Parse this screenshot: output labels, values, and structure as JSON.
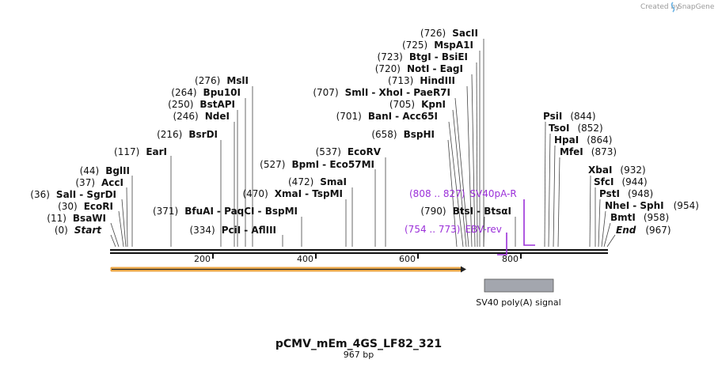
{
  "credit": {
    "text": "Created by",
    "brand": "SnapGene"
  },
  "plasmid": {
    "name": "pCMV_mEm_4GS_LF82_321",
    "length_label": "967 bp",
    "length": 967
  },
  "ticks": [
    "200",
    "400",
    "600",
    "800"
  ],
  "sites": [
    {
      "pos": "(0)",
      "names": [
        "Start"
      ],
      "italic": true,
      "bp": 0
    },
    {
      "pos": "(11)",
      "names": [
        "BsaWI"
      ],
      "bp": 11
    },
    {
      "pos": "(30)",
      "names": [
        "EcoRI"
      ],
      "bp": 30
    },
    {
      "pos": "(36)",
      "names": [
        "SalI",
        "SgrDI"
      ],
      "bp": 36
    },
    {
      "pos": "(37)",
      "names": [
        "AccI"
      ],
      "bp": 37
    },
    {
      "pos": "(44)",
      "names": [
        "BglII"
      ],
      "bp": 44
    },
    {
      "pos": "(117)",
      "names": [
        "EarI"
      ],
      "bp": 117
    },
    {
      "pos": "(216)",
      "names": [
        "BsrDI"
      ],
      "bp": 216
    },
    {
      "pos": "(246)",
      "names": [
        "NdeI"
      ],
      "bp": 246
    },
    {
      "pos": "(250)",
      "names": [
        "BstAPI"
      ],
      "bp": 250
    },
    {
      "pos": "(264)",
      "names": [
        "Bpu10I"
      ],
      "bp": 264
    },
    {
      "pos": "(276)",
      "names": [
        "MslI"
      ],
      "bp": 276
    },
    {
      "pos": "(334)",
      "names": [
        "PciI",
        "AflIII"
      ],
      "bp": 334
    },
    {
      "pos": "(371)",
      "names": [
        "BfuAI",
        "PaqCI",
        "BspMI"
      ],
      "bp": 371
    },
    {
      "pos": "(470)",
      "names": [
        "XmaI",
        "TspMI"
      ],
      "bp": 470
    },
    {
      "pos": "(472)",
      "names": [
        "SmaI"
      ],
      "bp": 472
    },
    {
      "pos": "(527)",
      "names": [
        "BpmI",
        "Eco57MI"
      ],
      "bp": 527
    },
    {
      "pos": "(537)",
      "names": [
        "EcoRV"
      ],
      "bp": 537
    },
    {
      "pos": "(658)",
      "names": [
        "BspHI"
      ],
      "bp": 658
    },
    {
      "pos": "(701)",
      "names": [
        "BanI",
        "Acc65I"
      ],
      "bp": 701
    },
    {
      "pos": "(705)",
      "names": [
        "KpnI"
      ],
      "bp": 705
    },
    {
      "pos": "(707)",
      "names": [
        "SmlI",
        "XhoI",
        "PaeR7I"
      ],
      "bp": 707
    },
    {
      "pos": "(713)",
      "names": [
        "HindIII"
      ],
      "bp": 713
    },
    {
      "pos": "(720)",
      "names": [
        "NotI",
        "EagI"
      ],
      "bp": 720
    },
    {
      "pos": "(723)",
      "names": [
        "BtgI",
        "BsiEI"
      ],
      "bp": 723
    },
    {
      "pos": "(725)",
      "names": [
        "MspA1I"
      ],
      "bp": 725
    },
    {
      "pos": "(726)",
      "names": [
        "SacII"
      ],
      "bp": 726
    },
    {
      "pos": "(790)",
      "names": [
        "BtsI",
        "BtsαI"
      ],
      "bp": 790
    },
    {
      "pos": "(844)",
      "names": [
        "PsiI"
      ],
      "bp": 844
    },
    {
      "pos": "(852)",
      "names": [
        "TsoI"
      ],
      "bp": 852
    },
    {
      "pos": "(864)",
      "names": [
        "HpaI"
      ],
      "bp": 864
    },
    {
      "pos": "(873)",
      "names": [
        "MfeI"
      ],
      "bp": 873
    },
    {
      "pos": "(932)",
      "names": [
        "XbaI"
      ],
      "bp": 932
    },
    {
      "pos": "(944)",
      "names": [
        "SfcI"
      ],
      "bp": 944
    },
    {
      "pos": "(948)",
      "names": [
        "PstI"
      ],
      "bp": 948
    },
    {
      "pos": "(954)",
      "names": [
        "NheI",
        "SphI"
      ],
      "bp": 954
    },
    {
      "pos": "(958)",
      "names": [
        "BmtI"
      ],
      "bp": 958
    },
    {
      "pos": "(967)",
      "names": [
        "End"
      ],
      "italic": true,
      "bp": 967
    }
  ],
  "primers": [
    {
      "range": "(808 .. 827)",
      "name": "SV40pA-R"
    },
    {
      "range": "(754 .. 773)",
      "name": "EBV-rev"
    }
  ],
  "features": [
    {
      "name": "SV40 poly(A) signal",
      "start": 738,
      "end": 872,
      "color": "#a3a6ae"
    }
  ],
  "orf": {
    "start": 0,
    "end": 697,
    "color": "#f2a33a"
  }
}
